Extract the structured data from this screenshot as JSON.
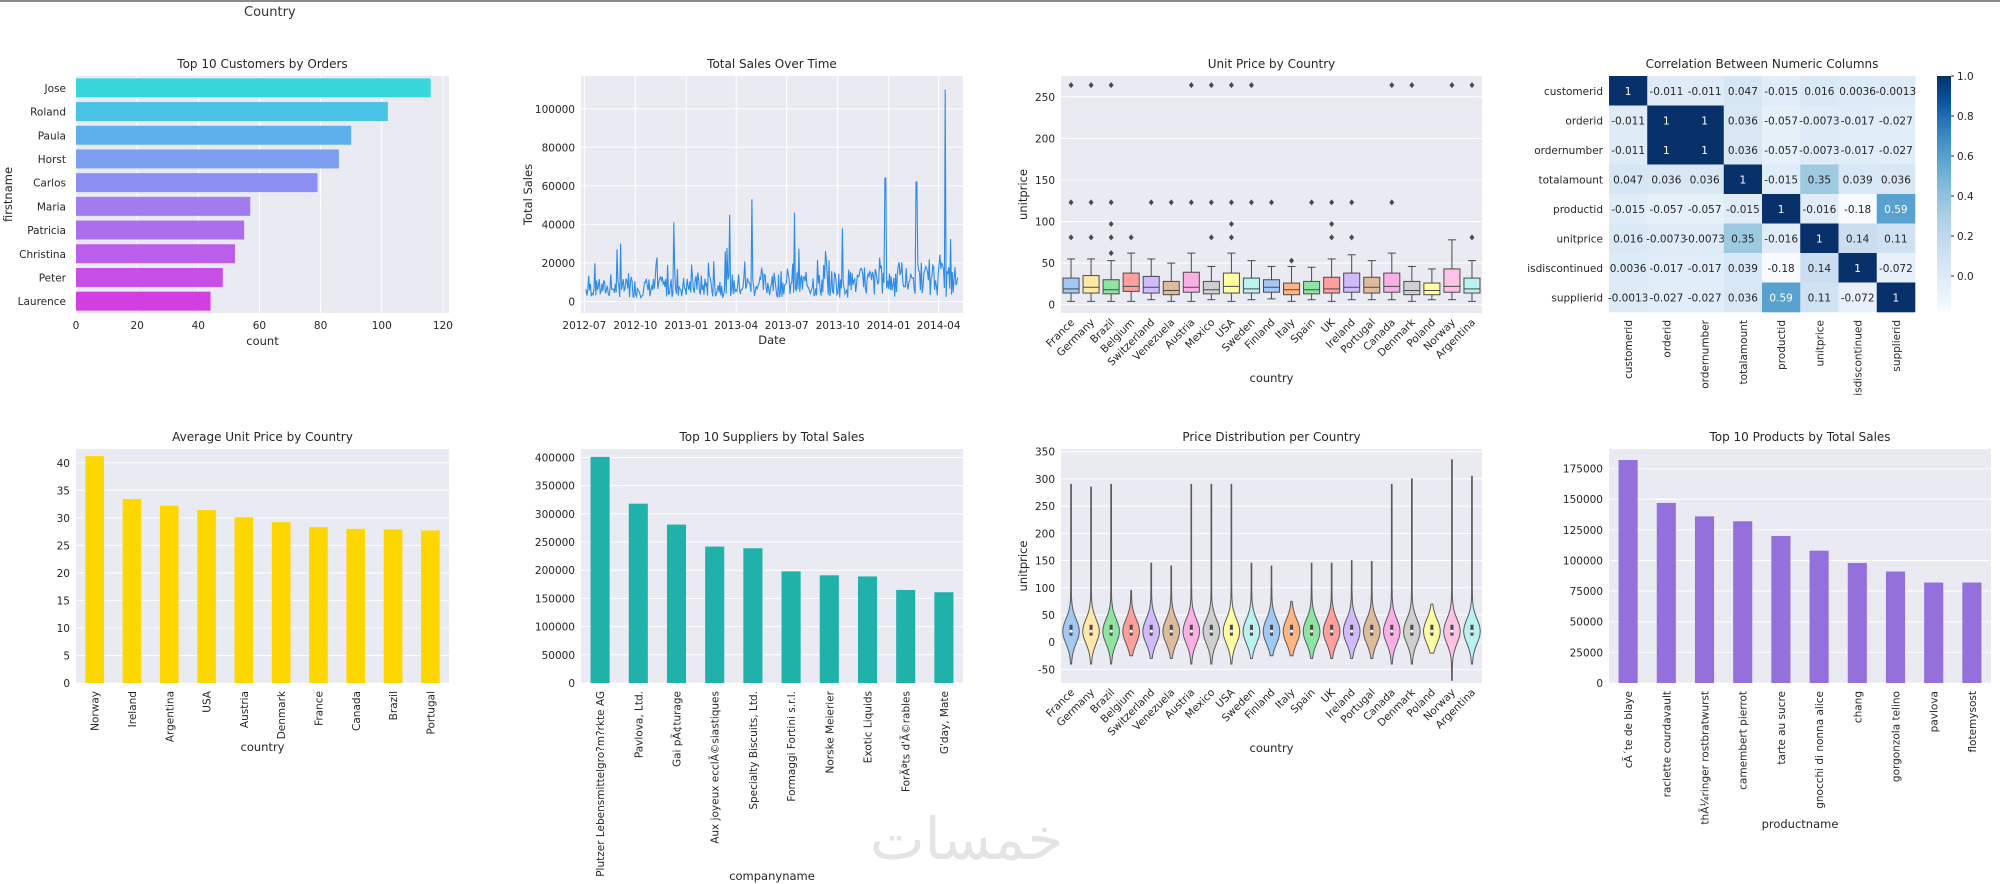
{
  "top_clip_label": "Country",
  "watermark": "خمسات",
  "colors": {
    "panel_bg": "#eaeaf2",
    "yellow": "#ffd700",
    "teal": "#20b2aa",
    "purple": "#9370db",
    "cmap_low": "#f7fbff",
    "cmap_high": "#08306b"
  },
  "chart_data": [
    {
      "id": "c1",
      "type": "bar",
      "orientation": "horizontal",
      "title": "Top 10 Customers by Orders",
      "xlabel": "count",
      "ylabel": "firstname",
      "categories": [
        "Jose",
        "Roland",
        "Paula",
        "Horst",
        "Carlos",
        "Maria",
        "Patricia",
        "Christina",
        "Peter",
        "Laurence"
      ],
      "values": [
        116,
        102,
        90,
        86,
        79,
        57,
        55,
        52,
        48,
        44
      ],
      "xlim": [
        0,
        122
      ],
      "xticks": [
        0,
        20,
        40,
        60,
        80,
        100,
        120
      ],
      "palette": "cool"
    },
    {
      "id": "c2",
      "type": "line",
      "title": "Total Sales Over Time",
      "xlabel": "Date",
      "ylabel": "Total Sales",
      "x_range": [
        "2012-07-04",
        "2014-05-06"
      ],
      "xtick_labels": [
        "2012-07",
        "2012-10",
        "2013-01",
        "2013-04",
        "2013-07",
        "2013-10",
        "2014-01",
        "2014-04"
      ],
      "ylim": [
        -6000,
        117000
      ],
      "yticks": [
        0,
        20000,
        40000,
        60000,
        80000,
        100000
      ],
      "approx_series": "daily order totals, mostly 2000–25000 with spikes",
      "peaks": [
        {
          "date": "2012-09-04",
          "value": 30000
        },
        {
          "date": "2012-12-10",
          "value": 41000
        },
        {
          "date": "2013-03-20",
          "value": 45000
        },
        {
          "date": "2013-04-29",
          "value": 53000
        },
        {
          "date": "2013-07-15",
          "value": 46000
        },
        {
          "date": "2013-10-10",
          "value": 38000
        },
        {
          "date": "2013-12-26",
          "value": 64000
        },
        {
          "date": "2014-02-20",
          "value": 62000
        },
        {
          "date": "2014-04-13",
          "value": 110000
        }
      ]
    },
    {
      "id": "c3",
      "type": "box",
      "title": "Unit Price by Country",
      "xlabel": "country",
      "ylabel": "unitprice",
      "categories": [
        "France",
        "Germany",
        "Brazil",
        "Belgium",
        "Switzerland",
        "Venezuela",
        "Austria",
        "Mexico",
        "USA",
        "Sweden",
        "Finland",
        "Italy",
        "Spain",
        "UK",
        "Ireland",
        "Portugal",
        "Canada",
        "Denmark",
        "Poland",
        "Norway",
        "Argentina"
      ],
      "boxes": [
        {
          "q1": 14,
          "median": 19,
          "q3": 32,
          "low": 4,
          "high": 55,
          "outliers": [
            81,
            123,
            264
          ]
        },
        {
          "q1": 14,
          "median": 21,
          "q3": 35,
          "low": 4,
          "high": 55,
          "outliers": [
            81,
            123,
            264
          ]
        },
        {
          "q1": 13,
          "median": 18,
          "q3": 30,
          "low": 4,
          "high": 53,
          "outliers": [
            62,
            81,
            97,
            123,
            264
          ]
        },
        {
          "q1": 16,
          "median": 22,
          "q3": 38,
          "low": 4,
          "high": 62,
          "outliers": [
            81
          ]
        },
        {
          "q1": 14,
          "median": 21,
          "q3": 34,
          "low": 6,
          "high": 55,
          "outliers": [
            123
          ]
        },
        {
          "q1": 12,
          "median": 17,
          "q3": 28,
          "low": 4,
          "high": 50,
          "outliers": [
            123
          ]
        },
        {
          "q1": 15,
          "median": 21,
          "q3": 39,
          "low": 4,
          "high": 62,
          "outliers": [
            123,
            264
          ]
        },
        {
          "q1": 13,
          "median": 18,
          "q3": 28,
          "low": 6,
          "high": 46,
          "outliers": [
            81,
            123,
            264
          ]
        },
        {
          "q1": 14,
          "median": 22,
          "q3": 38,
          "low": 4,
          "high": 62,
          "outliers": [
            81,
            97,
            123,
            264
          ]
        },
        {
          "q1": 14,
          "median": 19,
          "q3": 32,
          "low": 6,
          "high": 53,
          "outliers": [
            123,
            264
          ]
        },
        {
          "q1": 15,
          "median": 21,
          "q3": 30,
          "low": 7,
          "high": 46,
          "outliers": [
            123
          ]
        },
        {
          "q1": 12,
          "median": 18,
          "q3": 26,
          "low": 4,
          "high": 46,
          "outliers": [
            53
          ]
        },
        {
          "q1": 13,
          "median": 18,
          "q3": 28,
          "low": 6,
          "high": 45,
          "outliers": [
            123
          ]
        },
        {
          "q1": 14,
          "median": 19,
          "q3": 33,
          "low": 4,
          "high": 55,
          "outliers": [
            81,
            97,
            123
          ]
        },
        {
          "q1": 15,
          "median": 21,
          "q3": 38,
          "low": 6,
          "high": 60,
          "outliers": [
            81,
            123
          ]
        },
        {
          "q1": 14,
          "median": 21,
          "q3": 33,
          "low": 6,
          "high": 53,
          "outliers": []
        },
        {
          "q1": 15,
          "median": 22,
          "q3": 38,
          "low": 6,
          "high": 62,
          "outliers": [
            123,
            264
          ]
        },
        {
          "q1": 12,
          "median": 17,
          "q3": 28,
          "low": 4,
          "high": 46,
          "outliers": [
            264
          ]
        },
        {
          "q1": 12,
          "median": 17,
          "q3": 26,
          "low": 6,
          "high": 43,
          "outliers": []
        },
        {
          "q1": 15,
          "median": 22,
          "q3": 43,
          "low": 6,
          "high": 78,
          "outliers": [
            264
          ]
        },
        {
          "q1": 14,
          "median": 19,
          "q3": 32,
          "low": 4,
          "high": 53,
          "outliers": [
            81,
            264
          ]
        }
      ],
      "ylim": [
        -10,
        275
      ],
      "yticks": [
        0,
        50,
        100,
        150,
        200,
        250
      ]
    },
    {
      "id": "c4",
      "type": "heatmap",
      "title": "Correlation Between Numeric Columns",
      "labels": [
        "customerid",
        "orderid",
        "ordernumber",
        "totalamount",
        "productid",
        "unitprice",
        "isdiscontinued",
        "supplierid"
      ],
      "matrix": [
        [
          1,
          -0.011,
          -0.011,
          0.047,
          -0.015,
          0.016,
          0.0036,
          -0.0013
        ],
        [
          -0.011,
          1,
          1,
          0.036,
          -0.057,
          -0.0073,
          -0.017,
          -0.027
        ],
        [
          -0.011,
          1,
          1,
          0.036,
          -0.057,
          -0.0073,
          -0.017,
          -0.027
        ],
        [
          0.047,
          0.036,
          0.036,
          1,
          -0.015,
          0.35,
          0.039,
          0.036
        ],
        [
          -0.015,
          -0.057,
          -0.057,
          -0.015,
          1,
          -0.016,
          -0.18,
          0.59
        ],
        [
          0.016,
          -0.0073,
          -0.0073,
          0.35,
          -0.016,
          1,
          0.14,
          0.11
        ],
        [
          0.0036,
          -0.017,
          -0.017,
          0.039,
          -0.18,
          0.14,
          1,
          -0.072
        ],
        [
          -0.0013,
          -0.027,
          -0.027,
          0.036,
          0.59,
          0.11,
          -0.072,
          1
        ]
      ],
      "annotations": [
        [
          "1",
          "-0.011",
          "-0.011",
          "0.047",
          "-0.015",
          "0.016",
          "0.0036",
          "-0.0013"
        ],
        [
          "-0.011",
          "1",
          "1",
          "0.036",
          "-0.057",
          "-0.0073",
          "-0.017",
          "-0.027"
        ],
        [
          "-0.011",
          "1",
          "1",
          "0.036",
          "-0.057",
          "-0.0073",
          "-0.017",
          "-0.027"
        ],
        [
          "0.047",
          "0.036",
          "0.036",
          "1",
          "-0.015",
          "0.35",
          "0.039",
          "0.036"
        ],
        [
          "-0.015",
          "-0.057",
          "-0.057",
          "-0.015",
          "1",
          "-0.016",
          "-0.18",
          "0.59"
        ],
        [
          "0.016",
          "-0.0073",
          "-0.0073",
          "0.35",
          "-0.016",
          "1",
          "0.14",
          "0.11"
        ],
        [
          "0.0036",
          "-0.017",
          "-0.017",
          "0.039",
          "-0.18",
          "0.14",
          "1",
          "-0.072"
        ],
        [
          "-0.0013",
          "-0.027",
          "-0.027",
          "0.036",
          "0.59",
          "0.11",
          "-0.072",
          "1"
        ]
      ],
      "colorbar": {
        "min": -0.18,
        "max": 1.0,
        "ticks": [
          -0.0,
          0.2,
          0.4,
          0.6,
          0.8,
          1.0
        ],
        "tick_labels": [
          "0.0",
          "0.2",
          "0.4",
          "0.6",
          "0.8",
          "1.0"
        ]
      }
    },
    {
      "id": "c5",
      "type": "bar",
      "title": "Average Unit Price by Country",
      "xlabel": "country",
      "ylabel": "",
      "categories": [
        "Norway",
        "Ireland",
        "Argentina",
        "USA",
        "Austria",
        "Denmark",
        "France",
        "Canada",
        "Brazil",
        "Portugal"
      ],
      "values": [
        41.2,
        33.4,
        32.2,
        31.4,
        30.1,
        29.2,
        28.3,
        28.0,
        27.9,
        27.7
      ],
      "ylim": [
        0,
        42.5
      ],
      "yticks": [
        0,
        5,
        10,
        15,
        20,
        25,
        30,
        35,
        40
      ],
      "color": "#ffd700"
    },
    {
      "id": "c6",
      "type": "bar",
      "title": "Top 10 Suppliers by Total Sales",
      "xlabel": "companyname",
      "ylabel": "",
      "categories": [
        "Plutzer Lebensmittelgro?m?rkte AG",
        "Pavlova, Ltd.",
        "Gai pÃ¢turage",
        "Aux joyeux ecclÃ©siastiques",
        "Specialty Biscuits, Ltd.",
        "Formaggi Fortini s.r.l.",
        "Norske Meierier",
        "Exotic Liquids",
        "ForÃªts d'Ã©rables",
        "G'day, Mate"
      ],
      "values": [
        401000,
        318000,
        281000,
        242000,
        239000,
        198000,
        191000,
        189000,
        165000,
        161000
      ],
      "ylim": [
        0,
        415000
      ],
      "yticks": [
        0,
        50000,
        100000,
        150000,
        200000,
        250000,
        300000,
        350000,
        400000
      ],
      "color": "#20b2aa"
    },
    {
      "id": "c7",
      "type": "violin",
      "title": "Price Distribution per Country",
      "xlabel": "country",
      "ylabel": "unitprice",
      "categories": [
        "France",
        "Germany",
        "Brazil",
        "Belgium",
        "Switzerland",
        "Venezuela",
        "Austria",
        "Mexico",
        "USA",
        "Sweden",
        "Finland",
        "Italy",
        "Spain",
        "UK",
        "Ireland",
        "Portugal",
        "Canada",
        "Denmark",
        "Poland",
        "Norway",
        "Argentina"
      ],
      "ranges": [
        [
          -40,
          290
        ],
        [
          -40,
          285
        ],
        [
          -40,
          290
        ],
        [
          -25,
          95
        ],
        [
          -30,
          145
        ],
        [
          -30,
          140
        ],
        [
          -40,
          290
        ],
        [
          -40,
          290
        ],
        [
          -40,
          290
        ],
        [
          -30,
          145
        ],
        [
          -25,
          140
        ],
        [
          -25,
          75
        ],
        [
          -30,
          145
        ],
        [
          -30,
          145
        ],
        [
          -30,
          150
        ],
        [
          -30,
          148
        ],
        [
          -40,
          290
        ],
        [
          -40,
          300
        ],
        [
          -20,
          70
        ],
        [
          -70,
          335
        ],
        [
          -40,
          305
        ]
      ],
      "ylim": [
        -75,
        355
      ],
      "yticks": [
        -50,
        0,
        50,
        100,
        150,
        200,
        250,
        300,
        350
      ]
    },
    {
      "id": "c8",
      "type": "bar",
      "title": "Top 10 Products by Total Sales",
      "xlabel": "productname",
      "ylabel": "",
      "categories": [
        "cÃ´te de blaye",
        "raclette courdavault",
        "thÃ¼ringer rostbratwurst",
        "camembert pierrot",
        "tarte au sucre",
        "gnocchi di nonna alice",
        "chang",
        "gorgonzola telino",
        "pavlova",
        "flotemysost"
      ],
      "values": [
        182000,
        147000,
        136000,
        132000,
        120000,
        108000,
        98000,
        91000,
        82000,
        82000
      ],
      "ylim": [
        0,
        191000
      ],
      "yticks": [
        0,
        25000,
        50000,
        75000,
        100000,
        125000,
        150000,
        175000
      ],
      "color": "#9370db"
    }
  ]
}
